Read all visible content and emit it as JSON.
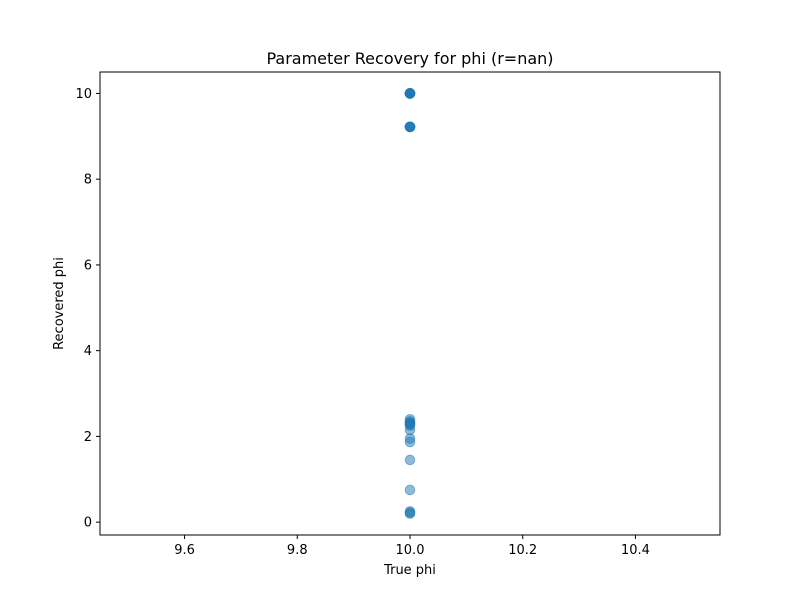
{
  "chart_data": {
    "type": "scatter",
    "title": "Parameter Recovery for phi (r=nan)",
    "xlabel": "True phi",
    "ylabel": "Recovered phi",
    "xlim": [
      9.45,
      10.55
    ],
    "ylim": [
      -0.3,
      10.5
    ],
    "xticks": [
      9.6,
      9.8,
      10.0,
      10.2,
      10.4
    ],
    "xtick_labels": [
      "9.6",
      "9.8",
      "10.0",
      "10.2",
      "10.4"
    ],
    "yticks": [
      0,
      2,
      4,
      6,
      8,
      10
    ],
    "ytick_labels": [
      "0",
      "2",
      "4",
      "6",
      "8",
      "10"
    ],
    "grid": false,
    "marker_color": "#1f77b4",
    "marker_alpha": 0.5,
    "series": [
      {
        "x": [
          10.0,
          10.0,
          10.0,
          10.0,
          10.0,
          10.0,
          10.0,
          10.0,
          10.0,
          10.0,
          10.0,
          10.0,
          10.0,
          10.0,
          10.0,
          10.0,
          10.0,
          10.0,
          10.0,
          10.0,
          10.0,
          10.0,
          10.0,
          10.0,
          10.0,
          10.0
        ],
        "y": [
          10.0,
          10.0,
          10.0,
          10.0,
          10.0,
          10.0,
          10.0,
          9.22,
          9.22,
          9.22,
          9.22,
          9.22,
          2.4,
          2.35,
          2.32,
          2.3,
          2.28,
          2.25,
          2.15,
          1.95,
          1.87,
          1.45,
          0.75,
          0.25,
          0.22,
          0.2
        ]
      }
    ]
  }
}
